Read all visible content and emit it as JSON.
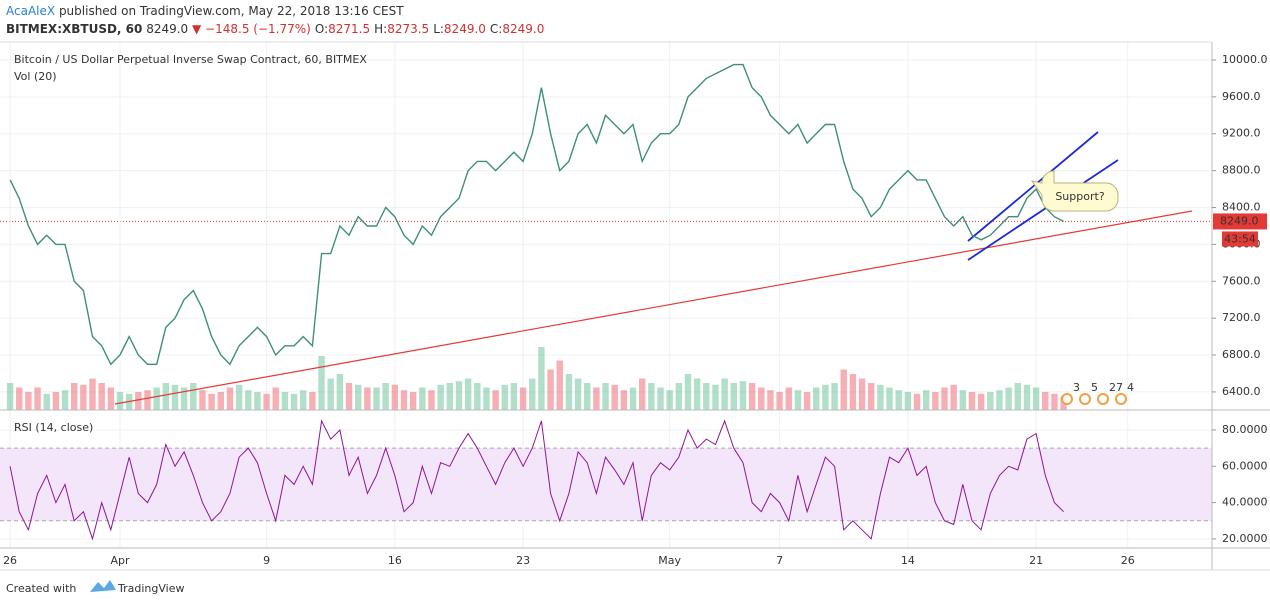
{
  "header": {
    "author": "AcaAleX",
    "published": "published on TradingView.com, May 22, 2018 13:16 CEST",
    "symbol": "BITMEX:XBTUSD, 60",
    "price": "8249.0",
    "change": "▼ −148.5 (−1.77%)",
    "ohlc": [
      {
        "label": "O:",
        "value": "8271.5"
      },
      {
        "label": "H:",
        "value": "8273.5"
      },
      {
        "label": "L:",
        "value": "8249.0"
      },
      {
        "label": "C:",
        "value": "8249.0"
      }
    ]
  },
  "chart_data": [
    {
      "type": "line",
      "title": "Bitcoin / US Dollar Perpetual Inverse Swap Contract, 60, BITMEX",
      "x": [
        0,
        0.5,
        1,
        1.5,
        2,
        2.5,
        3,
        3.5,
        4,
        4.5,
        5,
        5.5,
        6,
        6.5,
        7,
        7.5,
        8,
        8.5,
        9,
        9.5,
        10,
        10.5,
        11,
        11.5,
        12,
        12.5,
        13,
        13.5,
        14,
        14.5,
        15,
        15.5,
        16,
        16.5,
        17,
        17.5,
        18,
        18.5,
        19,
        19.5,
        20,
        20.5,
        21,
        21.5,
        22,
        22.5,
        23,
        23.5,
        24,
        24.5,
        25,
        25.5,
        26,
        26.5,
        27,
        27.5,
        28,
        28.5,
        29,
        29.5,
        30,
        30.5,
        31,
        31.5,
        32,
        32.5,
        33,
        33.5,
        34,
        34.5,
        35,
        35.5,
        36,
        36.5,
        37,
        37.5,
        38,
        38.5,
        39,
        39.5,
        40,
        40.5,
        41,
        41.5,
        42,
        42.5,
        43,
        43.5,
        44,
        44.5,
        45,
        45.5,
        46,
        46.5,
        47,
        47.5,
        48,
        48.5,
        49,
        49.5,
        50,
        50.5,
        51,
        51.5,
        52,
        52.5,
        53,
        53.5,
        54,
        54.5,
        55,
        55.5,
        56,
        56.5,
        57,
        57.5
      ],
      "series": [
        {
          "color": "#3f8f7a",
          "values": [
            8700,
            8500,
            8200,
            8000,
            8100,
            8000,
            8000,
            7600,
            7500,
            7000,
            6900,
            6700,
            6800,
            7000,
            6800,
            6700,
            6700,
            7100,
            7200,
            7400,
            7500,
            7300,
            7000,
            6800,
            6700,
            6900,
            7000,
            7100,
            7000,
            6800,
            6900,
            6900,
            7000,
            6900,
            7900,
            7900,
            8200,
            8100,
            8300,
            8200,
            8200,
            8400,
            8300,
            8100,
            8000,
            8200,
            8100,
            8300,
            8400,
            8500,
            8800,
            8900,
            8900,
            8800,
            8900,
            9000,
            8900,
            9200,
            9700,
            9200,
            8800,
            8900,
            9200,
            9300,
            9100,
            9400,
            9300,
            9200,
            9300,
            8900,
            9100,
            9200,
            9200,
            9300,
            9600,
            9700,
            9800,
            9850,
            9900,
            9950,
            9950,
            9700,
            9600,
            9400,
            9300,
            9200,
            9300,
            9100,
            9200,
            9300,
            9300,
            8900,
            8600,
            8500,
            8300,
            8400,
            8600,
            8700,
            8800,
            8700,
            8700,
            8500,
            8300,
            8200,
            8300,
            8100,
            8050,
            8100,
            8200,
            8300,
            8300,
            8500,
            8600,
            8400,
            8300,
            8249
          ]
        },
        {
          "name": "Vol (20)",
          "axis": "volume",
          "values": [
            30,
            25,
            20,
            25,
            18,
            20,
            22,
            30,
            28,
            35,
            30,
            25,
            20,
            18,
            20,
            22,
            25,
            30,
            28,
            25,
            30,
            22,
            18,
            20,
            25,
            28,
            22,
            20,
            18,
            25,
            20,
            18,
            22,
            20,
            60,
            35,
            40,
            30,
            28,
            25,
            25,
            30,
            28,
            22,
            20,
            25,
            22,
            28,
            30,
            32,
            35,
            30,
            25,
            22,
            28,
            30,
            25,
            35,
            70,
            45,
            55,
            40,
            35,
            30,
            25,
            30,
            28,
            22,
            25,
            35,
            30,
            25,
            22,
            30,
            40,
            35,
            30,
            28,
            35,
            30,
            32,
            30,
            25,
            22,
            20,
            25,
            22,
            20,
            25,
            28,
            30,
            45,
            40,
            35,
            30,
            28,
            25,
            22,
            20,
            18,
            22,
            20,
            25,
            28,
            22,
            20,
            18,
            20,
            22,
            25,
            30,
            28,
            25,
            20,
            18,
            15
          ]
        }
      ],
      "up_color": "#53b987",
      "down_color": "#eb4d5c",
      "xlim": [
        -0.55,
        65.6
      ],
      "ylim": [
        6204,
        10195
      ],
      "yticks": [
        {
          "value": 6400,
          "label": "6400.0"
        },
        {
          "value": 6800,
          "label": "6800.0"
        },
        {
          "value": 7200,
          "label": "7200.0"
        },
        {
          "value": 7600,
          "label": "7600.0"
        },
        {
          "value": 8000,
          "label": "8000.0"
        },
        {
          "value": 8400,
          "label": "8400.0"
        },
        {
          "value": 8800,
          "label": "8800.0"
        },
        {
          "value": 9200,
          "label": "9200.0"
        },
        {
          "value": 9600,
          "label": "9600.0"
        },
        {
          "value": 10000,
          "label": "10000.0"
        }
      ],
      "last": {
        "value": 8249,
        "label": "8249.0"
      },
      "countdown": "43:54",
      "annotations": [
        "Support?"
      ],
      "events": [
        "3",
        "5",
        "27",
        "4"
      ],
      "grid": true
    },
    {
      "type": "line",
      "title": "RSI (14, close)",
      "x": [
        0,
        0.5,
        1,
        1.5,
        2,
        2.5,
        3,
        3.5,
        4,
        4.5,
        5,
        5.5,
        6,
        6.5,
        7,
        7.5,
        8,
        8.5,
        9,
        9.5,
        10,
        10.5,
        11,
        11.5,
        12,
        12.5,
        13,
        13.5,
        14,
        14.5,
        15,
        15.5,
        16,
        16.5,
        17,
        17.5,
        18,
        18.5,
        19,
        19.5,
        20,
        20.5,
        21,
        21.5,
        22,
        22.5,
        23,
        23.5,
        24,
        24.5,
        25,
        25.5,
        26,
        26.5,
        27,
        27.5,
        28,
        28.5,
        29,
        29.5,
        30,
        30.5,
        31,
        31.5,
        32,
        32.5,
        33,
        33.5,
        34,
        34.5,
        35,
        35.5,
        36,
        36.5,
        37,
        37.5,
        38,
        38.5,
        39,
        39.5,
        40,
        40.5,
        41,
        41.5,
        42,
        42.5,
        43,
        43.5,
        44,
        44.5,
        45,
        45.5,
        46,
        46.5,
        47,
        47.5,
        48,
        48.5,
        49,
        49.5,
        50,
        50.5,
        51,
        51.5,
        52,
        52.5,
        53,
        53.5,
        54,
        54.5,
        55,
        55.5,
        56,
        56.5,
        57,
        57.5
      ],
      "series": [
        {
          "color": "#8e1599",
          "values": [
            60,
            35,
            25,
            45,
            55,
            40,
            50,
            30,
            35,
            20,
            40,
            25,
            45,
            65,
            45,
            40,
            50,
            72,
            60,
            68,
            55,
            40,
            30,
            35,
            45,
            65,
            70,
            62,
            45,
            30,
            55,
            50,
            60,
            50,
            85,
            75,
            80,
            55,
            65,
            45,
            55,
            70,
            55,
            35,
            40,
            60,
            45,
            62,
            60,
            70,
            78,
            70,
            60,
            50,
            62,
            70,
            60,
            70,
            85,
            45,
            30,
            45,
            68,
            62,
            45,
            65,
            58,
            50,
            62,
            30,
            55,
            62,
            58,
            65,
            80,
            70,
            75,
            72,
            85,
            70,
            62,
            40,
            35,
            45,
            40,
            30,
            55,
            35,
            50,
            65,
            60,
            25,
            30,
            25,
            20,
            45,
            65,
            62,
            70,
            55,
            60,
            40,
            30,
            28,
            50,
            30,
            25,
            45,
            55,
            60,
            58,
            75,
            78,
            55,
            40,
            35
          ]
        }
      ],
      "bands": [
        30,
        70
      ],
      "band_color": "#f3e6fa",
      "xlim": [
        -0.55,
        65.6
      ],
      "ylim": [
        15,
        91
      ],
      "yticks": [
        {
          "value": 20,
          "label": "20.0000"
        },
        {
          "value": 40,
          "label": "40.0000"
        },
        {
          "value": 60,
          "label": "60.0000"
        },
        {
          "value": 80,
          "label": "80.0000"
        }
      ],
      "xticks": [
        {
          "value": 0,
          "label": "26"
        },
        {
          "value": 6,
          "label": "Apr"
        },
        {
          "value": 14,
          "label": "9"
        },
        {
          "value": 21,
          "label": "16"
        },
        {
          "value": 28,
          "label": "23"
        },
        {
          "value": 36,
          "label": "May"
        },
        {
          "value": 42,
          "label": "7"
        },
        {
          "value": 49,
          "label": "14"
        },
        {
          "value": 56,
          "label": "21"
        },
        {
          "value": 61,
          "label": "26"
        }
      ],
      "grid": true
    }
  ],
  "footer": {
    "created": "Created with",
    "brand": "TradingView"
  }
}
